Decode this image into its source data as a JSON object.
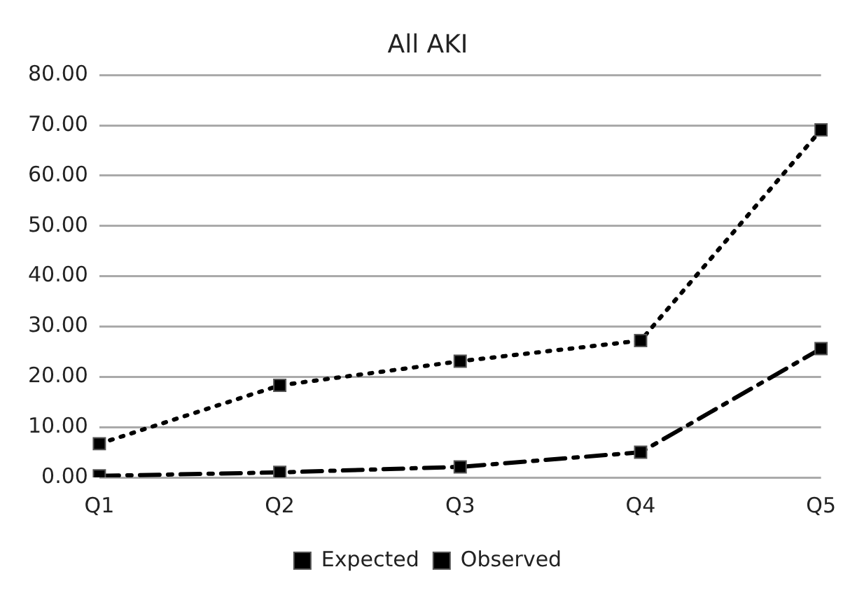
{
  "chart_data": {
    "type": "line",
    "title": "All AKI",
    "categories": [
      "Q1",
      "Q2",
      "Q3",
      "Q4",
      "Q5"
    ],
    "series": [
      {
        "name": "Expected",
        "color": "#000000",
        "values": [
          0.3,
          1.0,
          2.1,
          5.0,
          25.6
        ],
        "line_style": "dashed"
      },
      {
        "name": "Observed",
        "color": "#000000",
        "values": [
          6.7,
          18.3,
          23.1,
          27.2,
          69.1
        ],
        "line_style": "dotted"
      }
    ],
    "ylim": [
      0,
      80
    ],
    "yticks": [
      {
        "value": 0,
        "label": "0.00"
      },
      {
        "value": 10,
        "label": "10.00"
      },
      {
        "value": 20,
        "label": "20.00"
      },
      {
        "value": 30,
        "label": "30.00"
      },
      {
        "value": 40,
        "label": "40.00"
      },
      {
        "value": 50,
        "label": "50.00"
      },
      {
        "value": 60,
        "label": "60.00"
      },
      {
        "value": 70,
        "label": "70.00"
      },
      {
        "value": 80,
        "label": "80.00"
      }
    ],
    "grid": "y",
    "legend": "bottom",
    "marker": "square"
  }
}
